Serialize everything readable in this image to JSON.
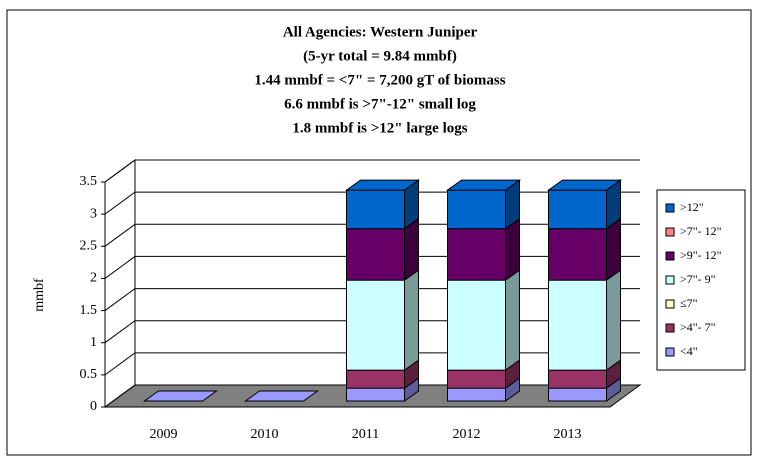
{
  "chart_data": {
    "type": "bar3d_stacked",
    "title": [
      "All Agencies:  Western Juniper",
      "(5-yr total = 9.84 mmbf)",
      "1.44 mmbf = <7\" = 7,200 gT of biomass",
      "6.6 mmbf is >7\"-12\" small log",
      "1.8 mmbf is >12\" large logs"
    ],
    "y_label": "mmbf",
    "categories": [
      "2009",
      "2010",
      "2011",
      "2012",
      "2013"
    ],
    "series": [
      {
        "name": "<4\"",
        "color": "#9999ff",
        "values": [
          0,
          0,
          0.2,
          0.2,
          0.2
        ]
      },
      {
        "name": ">4\"- 7\"",
        "color": "#993366",
        "values": [
          0,
          0,
          0.28,
          0.28,
          0.28
        ]
      },
      {
        "name": "≤7\"",
        "color": "#ffffcc",
        "values": [
          0,
          0,
          0,
          0,
          0
        ]
      },
      {
        "name": ">7\"- 9\"",
        "color": "#ccffff",
        "values": [
          0,
          0,
          1.4,
          1.4,
          1.4
        ]
      },
      {
        "name": ">9\"- 12\"",
        "color": "#660066",
        "values": [
          0,
          0,
          0.8,
          0.8,
          0.8
        ]
      },
      {
        "name": ">7\"- 12\"",
        "color": "#ff8080",
        "values": [
          0,
          0,
          0,
          0,
          0
        ]
      },
      {
        "name": ">12\"",
        "color": "#0066cc",
        "values": [
          0,
          0,
          0.6,
          0.6,
          0.6
        ]
      }
    ],
    "ylim": [
      0,
      3.5
    ],
    "yticks": [
      0,
      0.5,
      1,
      1.5,
      2,
      2.5,
      3,
      3.5
    ],
    "grid": true,
    "legend": "right"
  }
}
